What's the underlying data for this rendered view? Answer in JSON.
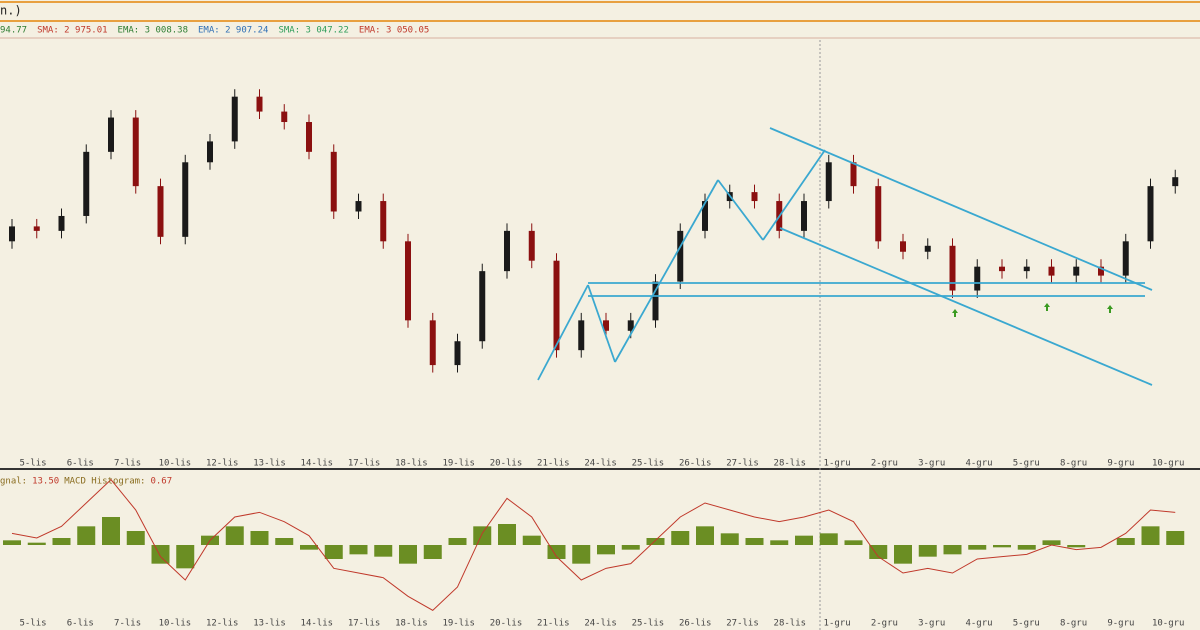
{
  "chart_data": {
    "type": "candlestick",
    "window_title": "n.)",
    "indicators": [
      {
        "label": "94.77",
        "color": "#2e7d32"
      },
      {
        "label": "SMA: 2 975.01",
        "color": "#c0392b"
      },
      {
        "label": "EMA: 3 008.38",
        "color": "#2e7d32"
      },
      {
        "label": "EMA: 2 907.24",
        "color": "#2f6fb5"
      },
      {
        "label": "SMA: 3 047.22",
        "color": "#2e9d5a"
      },
      {
        "label": "EMA: 3 050.05",
        "color": "#c0392b"
      }
    ],
    "date_labels": [
      "5-lis",
      "6-lis",
      "7-lis",
      "10-lis",
      "12-lis",
      "13-lis",
      "14-lis",
      "17-lis",
      "18-lis",
      "19-lis",
      "20-lis",
      "21-lis",
      "24-lis",
      "25-lis",
      "26-lis",
      "27-lis",
      "28-lis",
      "1-gru",
      "2-gru",
      "3-gru",
      "4-gru",
      "5-gru",
      "8-gru",
      "9-gru",
      "10-gru"
    ],
    "open": [
      3010,
      3020,
      3017,
      3027,
      3070,
      3093,
      3047,
      3013,
      3063,
      3077,
      3107,
      3097,
      3090,
      3070,
      3030,
      3037,
      3010,
      2957,
      2927,
      2943,
      2990,
      3017,
      2997,
      2937,
      2957,
      2950,
      2957,
      2983,
      3017,
      3037,
      3043,
      3037,
      3017,
      3037,
      3063,
      3047,
      3010,
      3003,
      3007,
      2977,
      2993,
      2990,
      2993,
      2987,
      2993,
      2987,
      3010,
      3047
    ],
    "high": [
      3025,
      3025,
      3032,
      3075,
      3098,
      3098,
      3052,
      3068,
      3082,
      3112,
      3112,
      3102,
      3095,
      3075,
      3042,
      3042,
      3015,
      2962,
      2948,
      2995,
      3022,
      3022,
      3002,
      2962,
      2962,
      2962,
      2988,
      3022,
      3042,
      3048,
      3048,
      3042,
      3042,
      3068,
      3068,
      3052,
      3015,
      3012,
      3012,
      2998,
      2998,
      2998,
      2998,
      2998,
      2998,
      3015,
      3052,
      3058
    ],
    "low": [
      3005,
      3012,
      3012,
      3022,
      3065,
      3042,
      3008,
      3008,
      3058,
      3072,
      3092,
      3085,
      3065,
      3025,
      3025,
      3005,
      2952,
      2922,
      2922,
      2938,
      2985,
      2992,
      2932,
      2932,
      2945,
      2945,
      2952,
      2978,
      3012,
      3032,
      3032,
      3012,
      3012,
      3032,
      3042,
      3005,
      2998,
      2998,
      2972,
      2972,
      2985,
      2985,
      2982,
      2982,
      2982,
      2982,
      3005,
      3042
    ],
    "close": [
      3020,
      3017,
      3027,
      3070,
      3093,
      3047,
      3013,
      3063,
      3077,
      3107,
      3097,
      3090,
      3070,
      3030,
      3037,
      3010,
      2957,
      2927,
      2943,
      2990,
      3017,
      2997,
      2937,
      2957,
      2950,
      2957,
      2983,
      3017,
      3037,
      3043,
      3037,
      3017,
      3037,
      3063,
      3047,
      3010,
      3003,
      3007,
      2977,
      2993,
      2990,
      2993,
      2987,
      2993,
      2987,
      3010,
      3047,
      3053
    ],
    "up_color": "#1a1a1a",
    "down_color": "#8b1010",
    "ylim": [
      2860,
      3145
    ],
    "macd": {
      "legend": [
        "gnal:",
        "13.50",
        "MACD Histogram:",
        "0.67"
      ],
      "histogram": [
        2,
        1,
        3,
        8,
        12,
        6,
        -8,
        -10,
        4,
        8,
        6,
        3,
        -2,
        -6,
        -4,
        -5,
        -8,
        -6,
        3,
        8,
        9,
        4,
        -6,
        -8,
        -4,
        -2,
        3,
        6,
        8,
        5,
        3,
        2,
        4,
        5,
        2,
        -6,
        -8,
        -5,
        -4,
        -2,
        -1,
        -2,
        2,
        -1,
        0,
        3,
        8,
        6
      ],
      "line": [
        5,
        3,
        8,
        18,
        28,
        15,
        -5,
        -15,
        2,
        12,
        14,
        10,
        4,
        -10,
        -12,
        -14,
        -22,
        -28,
        -18,
        5,
        20,
        12,
        -5,
        -15,
        -10,
        -8,
        2,
        12,
        18,
        15,
        12,
        10,
        12,
        15,
        10,
        -5,
        -12,
        -10,
        -12,
        -6,
        -5,
        -4,
        0,
        -2,
        -1,
        5,
        15,
        14
      ],
      "histogram_color": "#6b8e23",
      "line_color": "#c0392b",
      "ylim": [
        -30,
        30
      ]
    }
  }
}
